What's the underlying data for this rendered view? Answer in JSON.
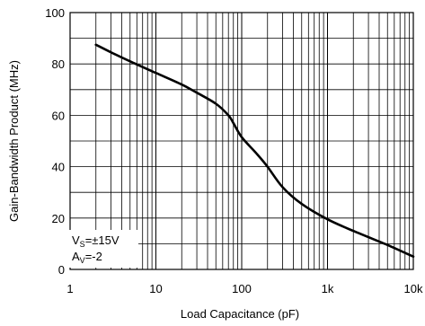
{
  "chart_data": {
    "type": "line",
    "xlabel": "Load Capacitance (pF)",
    "ylabel": "Gain-Bandwidth Product (MHz)",
    "xscale": "log",
    "xlim": [
      1,
      10000
    ],
    "ylim": [
      0,
      100
    ],
    "grid": true,
    "x_ticks": [
      {
        "value": 1,
        "label": "1"
      },
      {
        "value": 10,
        "label": "10"
      },
      {
        "value": 100,
        "label": "100"
      },
      {
        "value": 1000,
        "label": "1k"
      },
      {
        "value": 10000,
        "label": "10k"
      }
    ],
    "y_ticks": [
      {
        "value": 0,
        "label": "0"
      },
      {
        "value": 20,
        "label": "20"
      },
      {
        "value": 40,
        "label": "40"
      },
      {
        "value": 60,
        "label": "60"
      },
      {
        "value": 80,
        "label": "80"
      },
      {
        "value": 100,
        "label": "100"
      }
    ],
    "annotation": {
      "line1_main": "V",
      "line1_sub": "S",
      "line1_rest": "=±15V",
      "line2_main": "A",
      "line2_sub": "V",
      "line2_rest": "=-2"
    },
    "series": [
      {
        "x": [
          2,
          3,
          5,
          10,
          20,
          30,
          50,
          70,
          80,
          100,
          150,
          200,
          300,
          500,
          1000,
          2000,
          5000,
          10000
        ],
        "y": [
          87.5,
          84.5,
          81,
          76.5,
          72,
          68.8,
          64.5,
          60,
          57,
          51.5,
          45,
          40,
          32,
          25.5,
          19.5,
          15,
          9.5,
          5
        ]
      }
    ]
  }
}
